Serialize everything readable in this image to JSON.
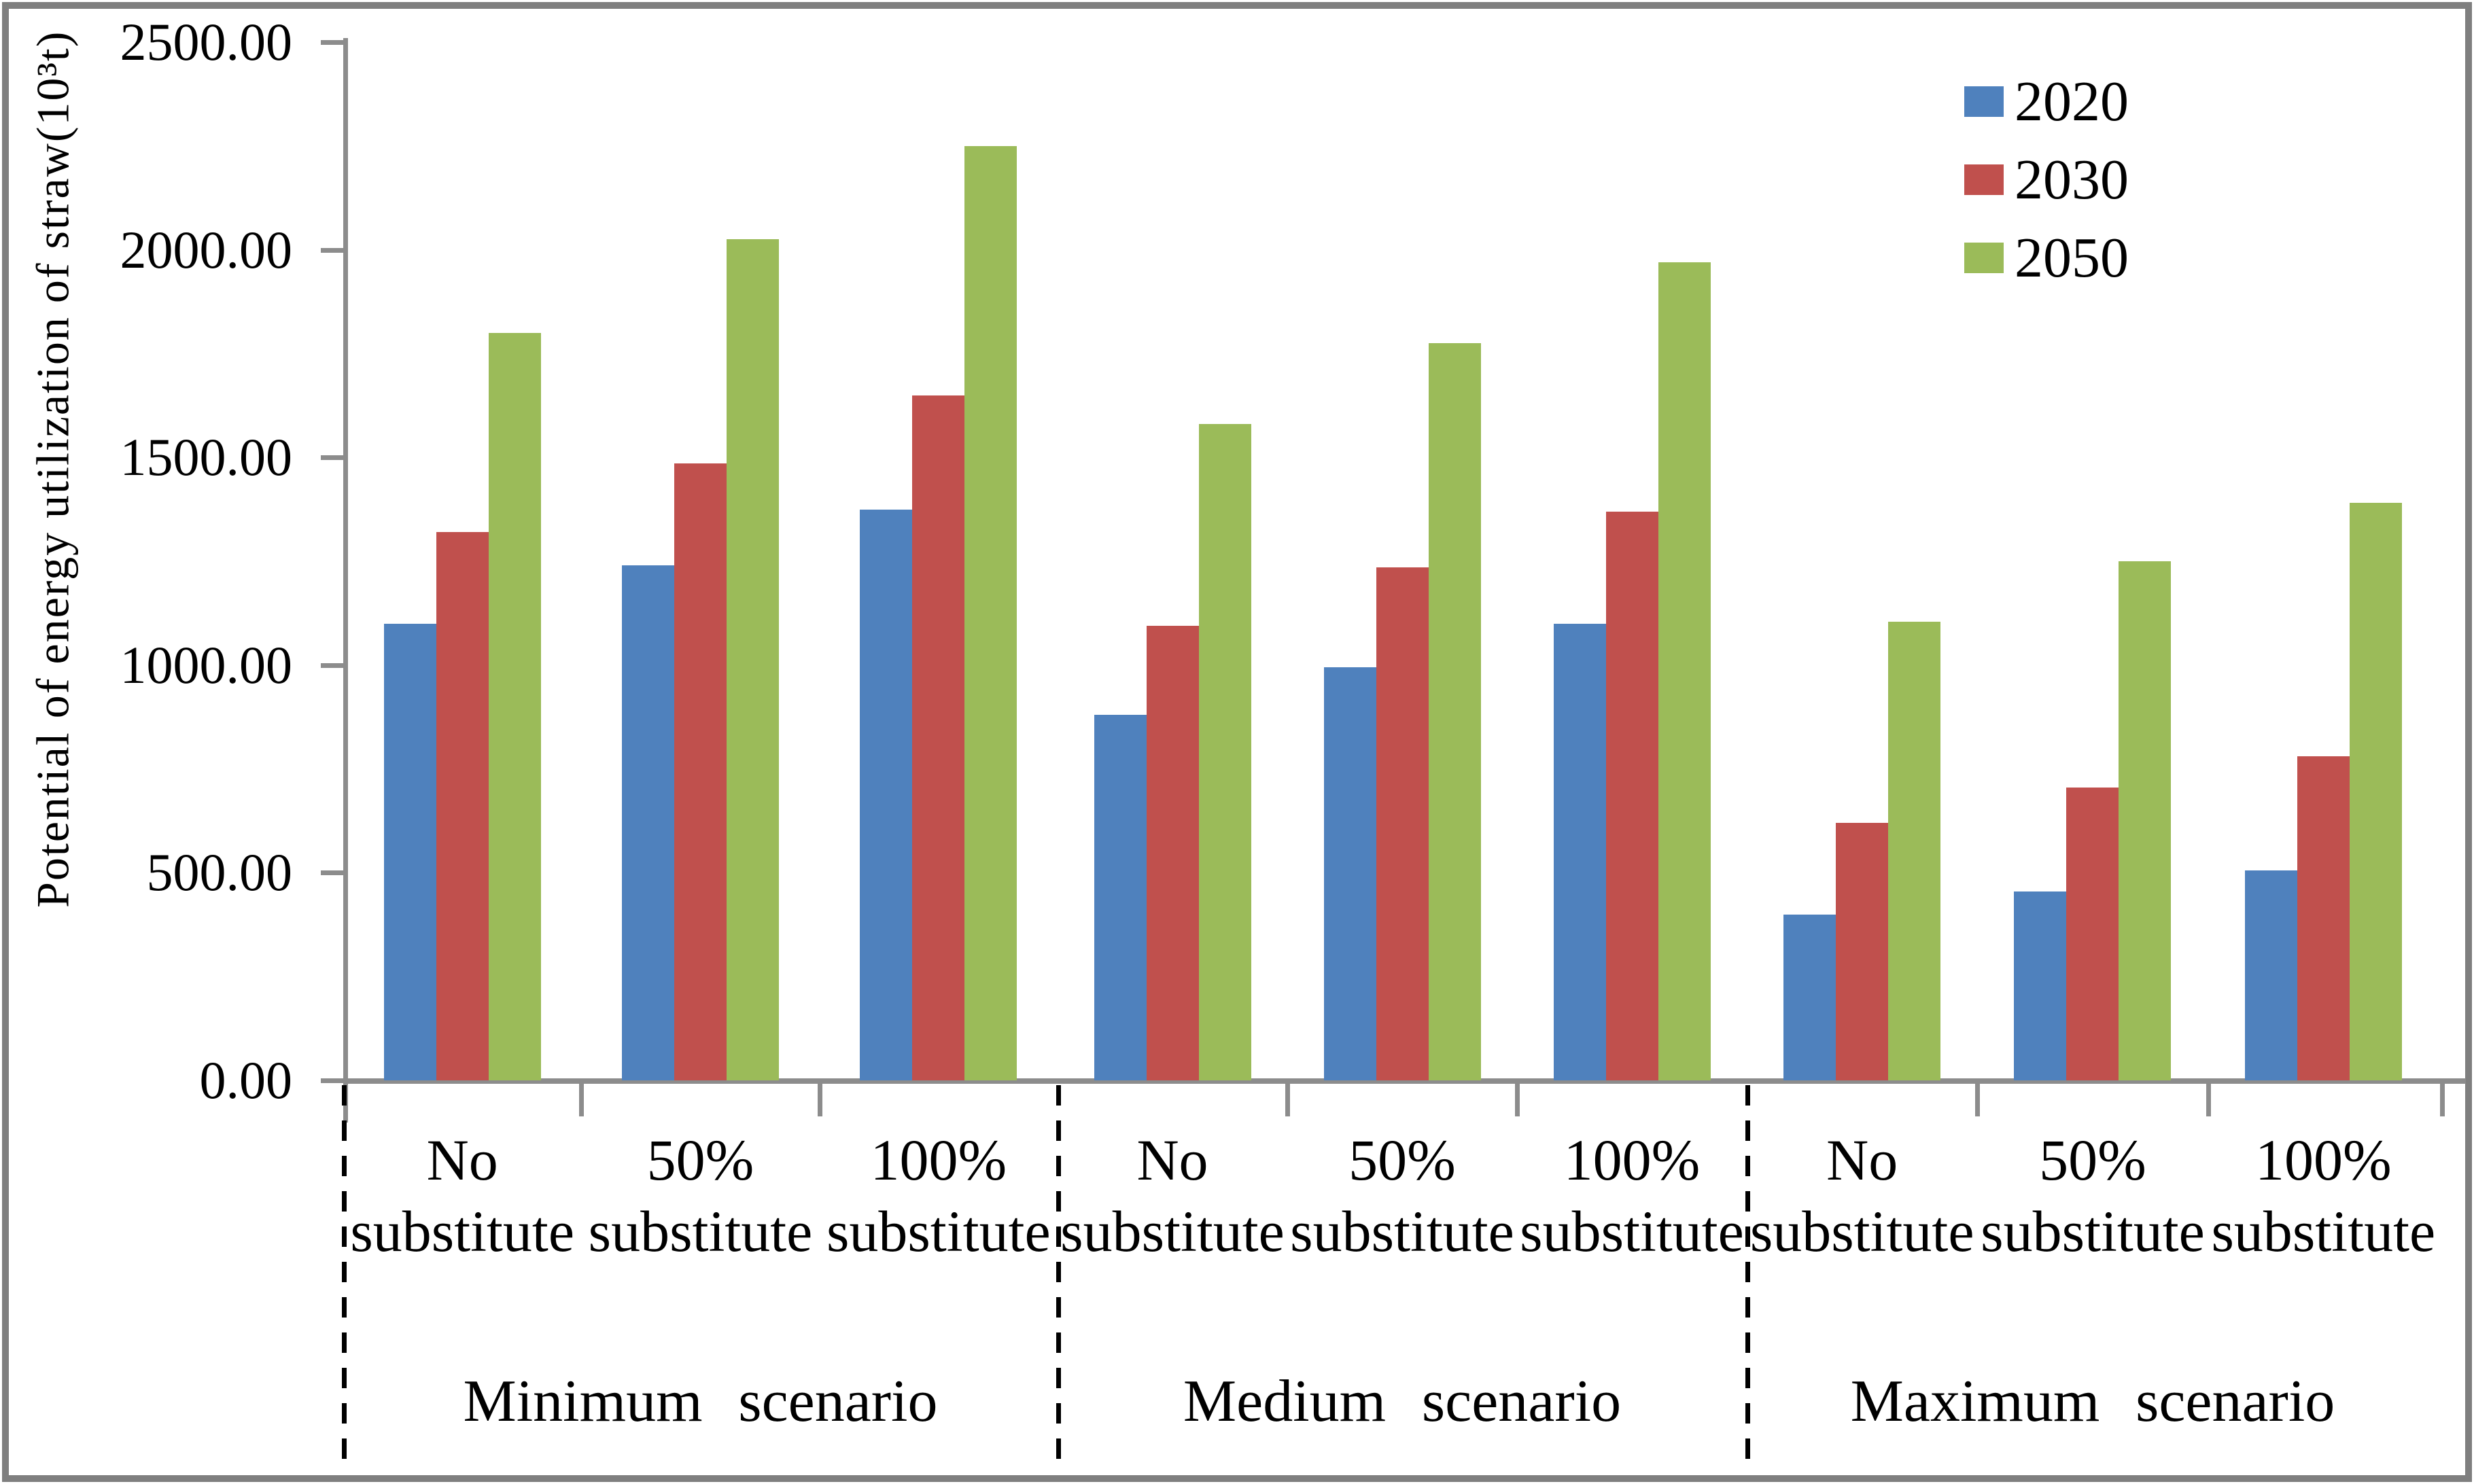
{
  "chart_data": {
    "type": "bar",
    "title": "",
    "ylabel": "Potential of energy utilization of straw(10³t)",
    "xlabel": "",
    "ylim": [
      0,
      2500
    ],
    "ytick_step": 500,
    "yticks": [
      {
        "value": 2500,
        "label": "2500.00"
      },
      {
        "value": 2000,
        "label": "2000.00"
      },
      {
        "value": 1500,
        "label": "1500.00"
      },
      {
        "value": 1000,
        "label": "1000.00"
      },
      {
        "value": 500,
        "label": "500.00"
      },
      {
        "value": 0,
        "label": "0.00"
      }
    ],
    "grid": false,
    "legend_position": "top-right",
    "legend": [
      {
        "name": "2020",
        "color": "#4F81BD"
      },
      {
        "name": "2030",
        "color": "#C0504D"
      },
      {
        "name": "2050",
        "color": "#9BBB59"
      }
    ],
    "groups": [
      {
        "label": "Minimum scenario",
        "categories": [
          {
            "line1": "No",
            "line2": "substitute"
          },
          {
            "line1": "50%",
            "line2": "substitute"
          },
          {
            "line1": "100%",
            "line2": "substitute"
          }
        ],
        "series": [
          {
            "name": "2020",
            "values": [
              1100,
              1240,
              1375
            ]
          },
          {
            "name": "2030",
            "values": [
              1320,
              1485,
              1650
            ]
          },
          {
            "name": "2050",
            "values": [
              1800,
              2025,
              2250
            ]
          }
        ]
      },
      {
        "label": "Medium scenario",
        "categories": [
          {
            "line1": "No",
            "line2": "substitute"
          },
          {
            "line1": "50%",
            "line2": "substitute"
          },
          {
            "line1": "100%",
            "line2": "substitute"
          }
        ],
        "series": [
          {
            "name": "2020",
            "values": [
              880,
              995,
              1100
            ]
          },
          {
            "name": "2030",
            "values": [
              1095,
              1235,
              1370
            ]
          },
          {
            "name": "2050",
            "values": [
              1580,
              1775,
              1970
            ]
          }
        ]
      },
      {
        "label": "Maximum scenario",
        "categories": [
          {
            "line1": "No",
            "line2": "substitute"
          },
          {
            "line1": "50%",
            "line2": "substitute"
          },
          {
            "line1": "100%",
            "line2": "substitute"
          }
        ],
        "series": [
          {
            "name": "2020",
            "values": [
              400,
              455,
              505
            ]
          },
          {
            "name": "2030",
            "values": [
              620,
              705,
              780
            ]
          },
          {
            "name": "2050",
            "values": [
              1105,
              1250,
              1390
            ]
          }
        ]
      }
    ]
  }
}
